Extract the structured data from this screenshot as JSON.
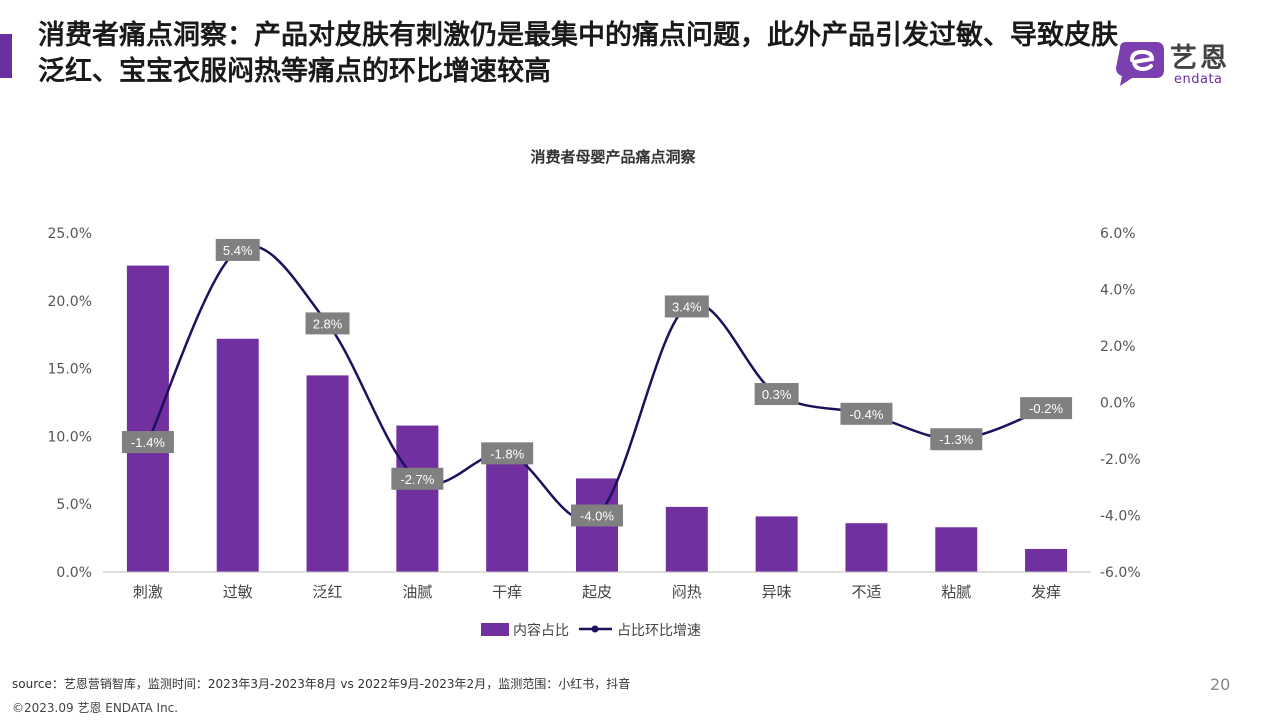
{
  "header": {
    "title": "消费者痛点洞察：产品对皮肤有刺激仍是最集中的痛点问题，此外产品引发过敏、导致皮肤泛红、宝宝衣服闷热等痛点的环比增速较高"
  },
  "logo": {
    "cn": "艺恩",
    "en": "endata"
  },
  "colors": {
    "bar": "#7030a0",
    "line": "#1f0f5c",
    "label_bg": "#808080",
    "accent": "#6b2fa0"
  },
  "chart_data": {
    "type": "bar",
    "title": "消费者母婴产品痛点洞察",
    "categories": [
      "刺激",
      "过敏",
      "泛红",
      "油腻",
      "干痒",
      "起皮",
      "闷热",
      "异味",
      "不适",
      "粘腻",
      "发痒"
    ],
    "series": [
      {
        "name": "内容占比",
        "type": "bar",
        "axis": "left",
        "values": [
          22.6,
          17.2,
          14.5,
          10.8,
          9.0,
          6.9,
          4.8,
          4.1,
          3.6,
          3.3,
          1.7
        ]
      },
      {
        "name": "占比环比增速",
        "type": "line",
        "axis": "right",
        "values": [
          -1.4,
          5.4,
          2.8,
          -2.7,
          -1.8,
          -4.0,
          3.4,
          0.3,
          -0.4,
          -1.3,
          -0.2
        ],
        "labels": [
          "-1.4%",
          "5.4%",
          "2.8%",
          "-2.7%",
          "-1.8%",
          "-4.0%",
          "3.4%",
          "0.3%",
          "-0.4%",
          "-1.3%",
          "-0.2%"
        ]
      }
    ],
    "y_left": {
      "min": 0,
      "max": 25,
      "step": 5,
      "tick_labels": [
        "0.0%",
        "5.0%",
        "10.0%",
        "15.0%",
        "20.0%",
        "25.0%"
      ]
    },
    "y_right": {
      "min": -6,
      "max": 6,
      "step": 2,
      "tick_labels": [
        "-6.0%",
        "-4.0%",
        "-2.0%",
        "0.0%",
        "2.0%",
        "4.0%",
        "6.0%"
      ]
    },
    "legend_position": "bottom",
    "grid": false
  },
  "footer": {
    "source": "source：艺恩营销智库，监测时间：2023年3月-2023年8月 vs 2022年9月-2023年2月，监测范围：小红书，抖音",
    "copyright": "©2023.09  艺恩 ENDATA Inc.",
    "page_number": "20"
  }
}
